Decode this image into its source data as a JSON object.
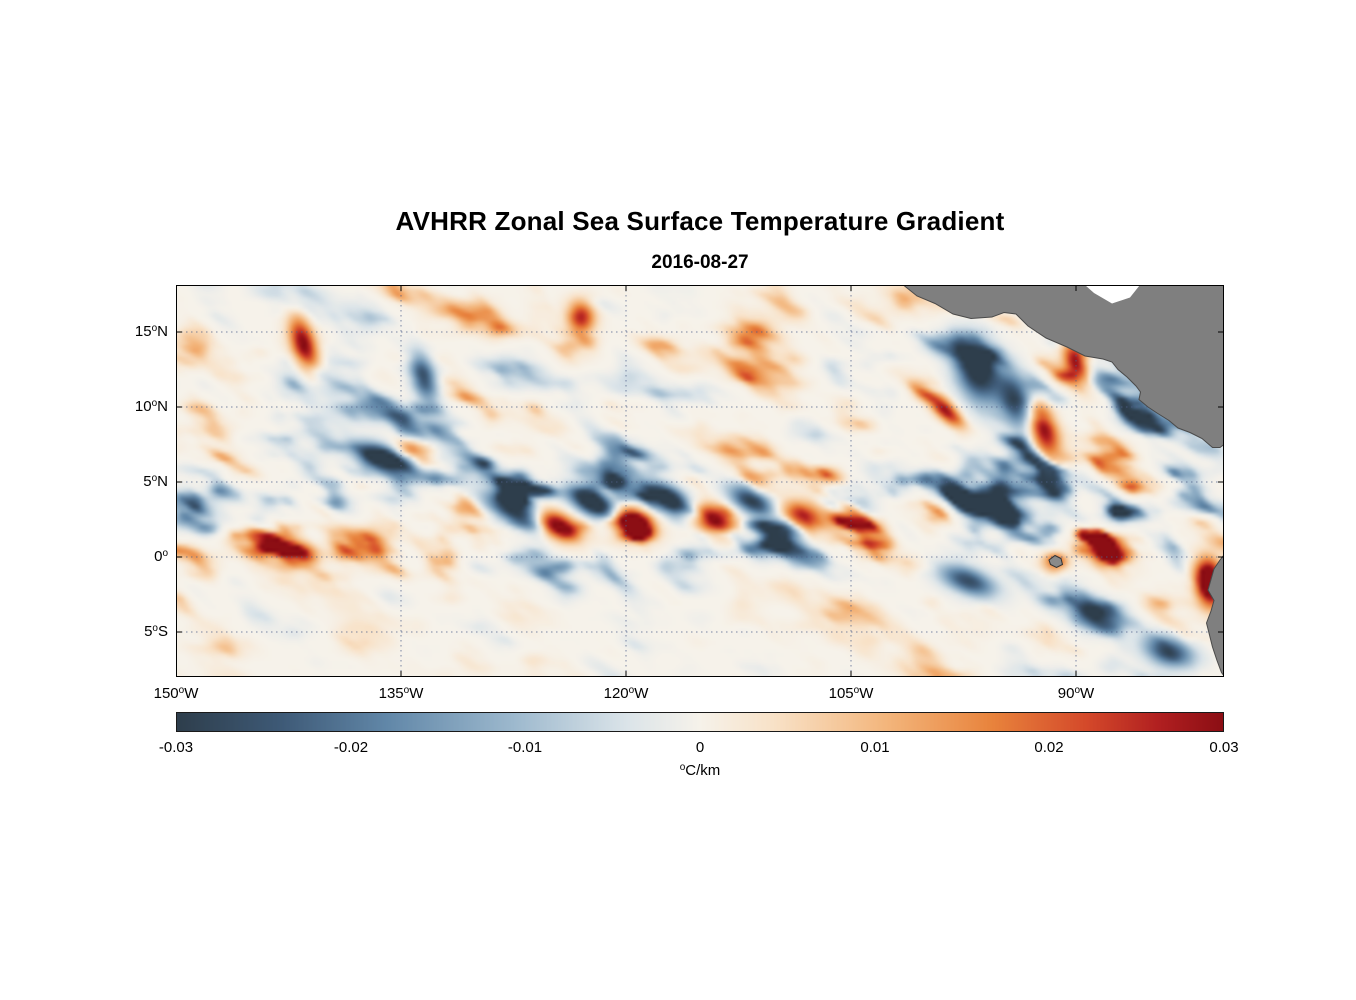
{
  "chart_data": {
    "type": "heatmap",
    "title": "AVHRR Zonal Sea Surface Temperature Gradient",
    "date": "2016-08-27",
    "degree_symbol": "o",
    "unit": {
      "sup": "o",
      "text": "C/km"
    },
    "lon_range": [
      -150,
      -80.13
    ],
    "lat_range": [
      -8,
      18.13
    ],
    "lat_ticks": [
      {
        "num": "15",
        "hemi": "N",
        "lat": 15
      },
      {
        "num": "10",
        "hemi": "N",
        "lat": 10
      },
      {
        "num": "5",
        "hemi": "N",
        "lat": 5
      },
      {
        "num": "0",
        "hemi": "",
        "lat": 0
      },
      {
        "num": "5",
        "hemi": "S",
        "lat": -5
      }
    ],
    "lon_ticks": [
      {
        "num": "150",
        "hemi": "W",
        "lon": -150
      },
      {
        "num": "135",
        "hemi": "W",
        "lon": -135
      },
      {
        "num": "120",
        "hemi": "W",
        "lon": -120
      },
      {
        "num": "105",
        "hemi": "W",
        "lon": -105
      },
      {
        "num": "90",
        "hemi": "W",
        "lon": -90
      }
    ],
    "colorbar": {
      "min": -0.03,
      "max": 0.03,
      "ticks": [
        "-0.03",
        "-0.02",
        "-0.01",
        "0",
        "0.01",
        "0.02",
        "0.03"
      ]
    },
    "colormap_stops": [
      [
        0.0,
        "#2e3e4c"
      ],
      [
        0.1,
        "#3e5a77"
      ],
      [
        0.2,
        "#6187a8"
      ],
      [
        0.32,
        "#9cb8cd"
      ],
      [
        0.43,
        "#dbe4e9"
      ],
      [
        0.5,
        "#f6f2ea"
      ],
      [
        0.57,
        "#f8e2c8"
      ],
      [
        0.68,
        "#f3b57b"
      ],
      [
        0.78,
        "#e8833c"
      ],
      [
        0.87,
        "#d4492a"
      ],
      [
        0.94,
        "#b01f20"
      ],
      [
        1.0,
        "#8c0e14"
      ]
    ],
    "grid_color": "#4e5f8a",
    "land_color": "#7f7f7f",
    "land_edge_color": "#4a4a4a",
    "land_polygons": {
      "central_america": [
        [
          -101.6,
          18.2
        ],
        [
          -100.6,
          17.4
        ],
        [
          -99.4,
          16.9
        ],
        [
          -98.2,
          16.2
        ],
        [
          -97.0,
          15.9
        ],
        [
          -95.6,
          16.0
        ],
        [
          -94.8,
          16.3
        ],
        [
          -94.0,
          16.2
        ],
        [
          -93.2,
          15.4
        ],
        [
          -92.0,
          14.6
        ],
        [
          -90.6,
          14.0
        ],
        [
          -89.4,
          13.4
        ],
        [
          -88.2,
          13.2
        ],
        [
          -87.6,
          13.0
        ],
        [
          -87.2,
          12.5
        ],
        [
          -86.6,
          12.0
        ],
        [
          -86.0,
          11.4
        ],
        [
          -85.7,
          11.0
        ],
        [
          -85.8,
          10.5
        ],
        [
          -85.2,
          10.0
        ],
        [
          -84.6,
          9.6
        ],
        [
          -83.8,
          9.1
        ],
        [
          -83.2,
          8.6
        ],
        [
          -82.4,
          8.3
        ],
        [
          -81.6,
          7.9
        ],
        [
          -80.9,
          7.3
        ],
        [
          -80.4,
          7.3
        ],
        [
          -80.0,
          7.6
        ],
        [
          -80.0,
          18.2
        ]
      ],
      "caribbean_mask": [
        [
          -89.6,
          18.3
        ],
        [
          -85.6,
          18.3
        ],
        [
          -86.4,
          17.3
        ],
        [
          -87.6,
          16.9
        ],
        [
          -88.8,
          17.6
        ]
      ],
      "south_america": [
        [
          -80.0,
          0.3
        ],
        [
          -80.4,
          -0.2
        ],
        [
          -80.8,
          -0.8
        ],
        [
          -81.0,
          -1.5
        ],
        [
          -81.2,
          -2.2
        ],
        [
          -80.8,
          -2.9
        ],
        [
          -81.0,
          -3.6
        ],
        [
          -81.3,
          -4.4
        ],
        [
          -81.1,
          -5.2
        ],
        [
          -80.9,
          -6.0
        ],
        [
          -80.6,
          -6.9
        ],
        [
          -80.3,
          -7.7
        ],
        [
          -80.0,
          -8.1
        ]
      ],
      "galapagos": [
        [
          -91.8,
          -0.2
        ],
        [
          -91.4,
          0.1
        ],
        [
          -91.0,
          -0.1
        ],
        [
          -90.9,
          -0.5
        ],
        [
          -91.3,
          -0.7
        ],
        [
          -91.7,
          -0.5
        ]
      ]
    },
    "features": [
      [
        -141.5,
        14.2,
        0.8,
        1.8,
        0.3,
        1.05
      ],
      [
        -136.2,
        6.6,
        2.0,
        0.8,
        -0.35,
        -1.15
      ],
      [
        -134.2,
        6.9,
        1.1,
        0.7,
        -0.3,
        1.15
      ],
      [
        -133.5,
        12.0,
        0.8,
        1.6,
        0.3,
        -0.9
      ],
      [
        -127.5,
        3.2,
        2.0,
        0.85,
        -0.45,
        -1.1
      ],
      [
        -124.6,
        2.1,
        1.5,
        0.8,
        -0.45,
        1.2
      ],
      [
        -123.0,
        16.0,
        0.9,
        1.1,
        0.2,
        0.9
      ],
      [
        -122.2,
        3.6,
        1.7,
        0.8,
        -0.5,
        -1.3
      ],
      [
        -119.6,
        2.3,
        1.4,
        0.85,
        -0.4,
        1.25
      ],
      [
        -117.2,
        3.9,
        1.7,
        0.8,
        -0.5,
        -1.15
      ],
      [
        -114.2,
        2.5,
        1.5,
        0.9,
        -0.4,
        1.1
      ],
      [
        -111.6,
        3.7,
        1.6,
        0.8,
        -0.5,
        -1.0
      ],
      [
        -108.3,
        2.7,
        1.4,
        0.9,
        -0.4,
        0.95
      ],
      [
        -105.5,
        4.0,
        1.5,
        0.8,
        -0.45,
        -0.85
      ],
      [
        -96.6,
        12.4,
        1.3,
        2.1,
        0.35,
        -1.15
      ],
      [
        -94.0,
        10.4,
        1.1,
        1.9,
        0.35,
        -0.95
      ],
      [
        -92.2,
        8.6,
        0.9,
        2.0,
        0.35,
        1.05
      ],
      [
        -90.0,
        13.0,
        0.8,
        1.4,
        0.25,
        1.0
      ],
      [
        -97.2,
        -1.6,
        1.9,
        0.85,
        -0.35,
        -0.9
      ],
      [
        -88.6,
        -3.9,
        1.5,
        0.9,
        -0.3,
        -0.85
      ],
      [
        -83.8,
        -6.3,
        1.7,
        0.9,
        -0.3,
        -0.9
      ],
      [
        -91.4,
        -0.4,
        0.8,
        0.6,
        0,
        0.95
      ],
      [
        -81.1,
        -1.7,
        0.9,
        1.5,
        0.15,
        1.55
      ]
    ]
  }
}
